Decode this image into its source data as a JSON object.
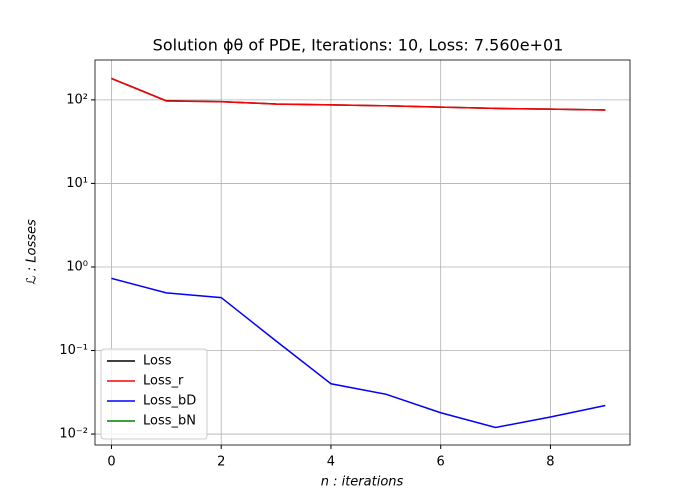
{
  "chart_data": {
    "type": "line",
    "title": "Solution ϕθ of PDE, Iterations: 10, Loss: 7.560e+01",
    "x_label": "n : iterations",
    "y_label": "ℒ : Losses",
    "x": [
      0,
      1,
      2,
      3,
      4,
      5,
      6,
      7,
      8,
      9
    ],
    "series": [
      {
        "name": "Loss",
        "color": "#000000",
        "values": [
          180.7,
          97.5,
          95.4,
          89.1,
          87.0,
          85.0,
          82.0,
          79.0,
          77.5,
          75.6
        ]
      },
      {
        "name": "Loss_r",
        "color": "#ff0000",
        "values": [
          180.0,
          97.0,
          95.0,
          89.0,
          87.0,
          85.0,
          82.0,
          79.0,
          77.5,
          75.58
        ]
      },
      {
        "name": "Loss_bD",
        "color": "#0000ff",
        "values": [
          0.73,
          0.49,
          0.43,
          0.13,
          0.04,
          0.03,
          0.018,
          0.012,
          0.016,
          0.022
        ]
      },
      {
        "name": "Loss_bN",
        "color": "#008000",
        "values": [
          null,
          null,
          null,
          null,
          null,
          null,
          null,
          null,
          null,
          null
        ]
      }
    ],
    "xlim": [
      -0.3,
      9.45
    ],
    "ylim": [
      0.0074,
      300
    ],
    "xticks": [
      0,
      2,
      4,
      6,
      8
    ],
    "yticks": [
      {
        "value": 0.01,
        "label": "10⁻²"
      },
      {
        "value": 0.1,
        "label": "10⁻¹"
      },
      {
        "value": 1,
        "label": "10⁰"
      },
      {
        "value": 10,
        "label": "10¹"
      },
      {
        "value": 100,
        "label": "10²"
      }
    ],
    "log_y": true,
    "grid": true,
    "legend": "lower left"
  }
}
